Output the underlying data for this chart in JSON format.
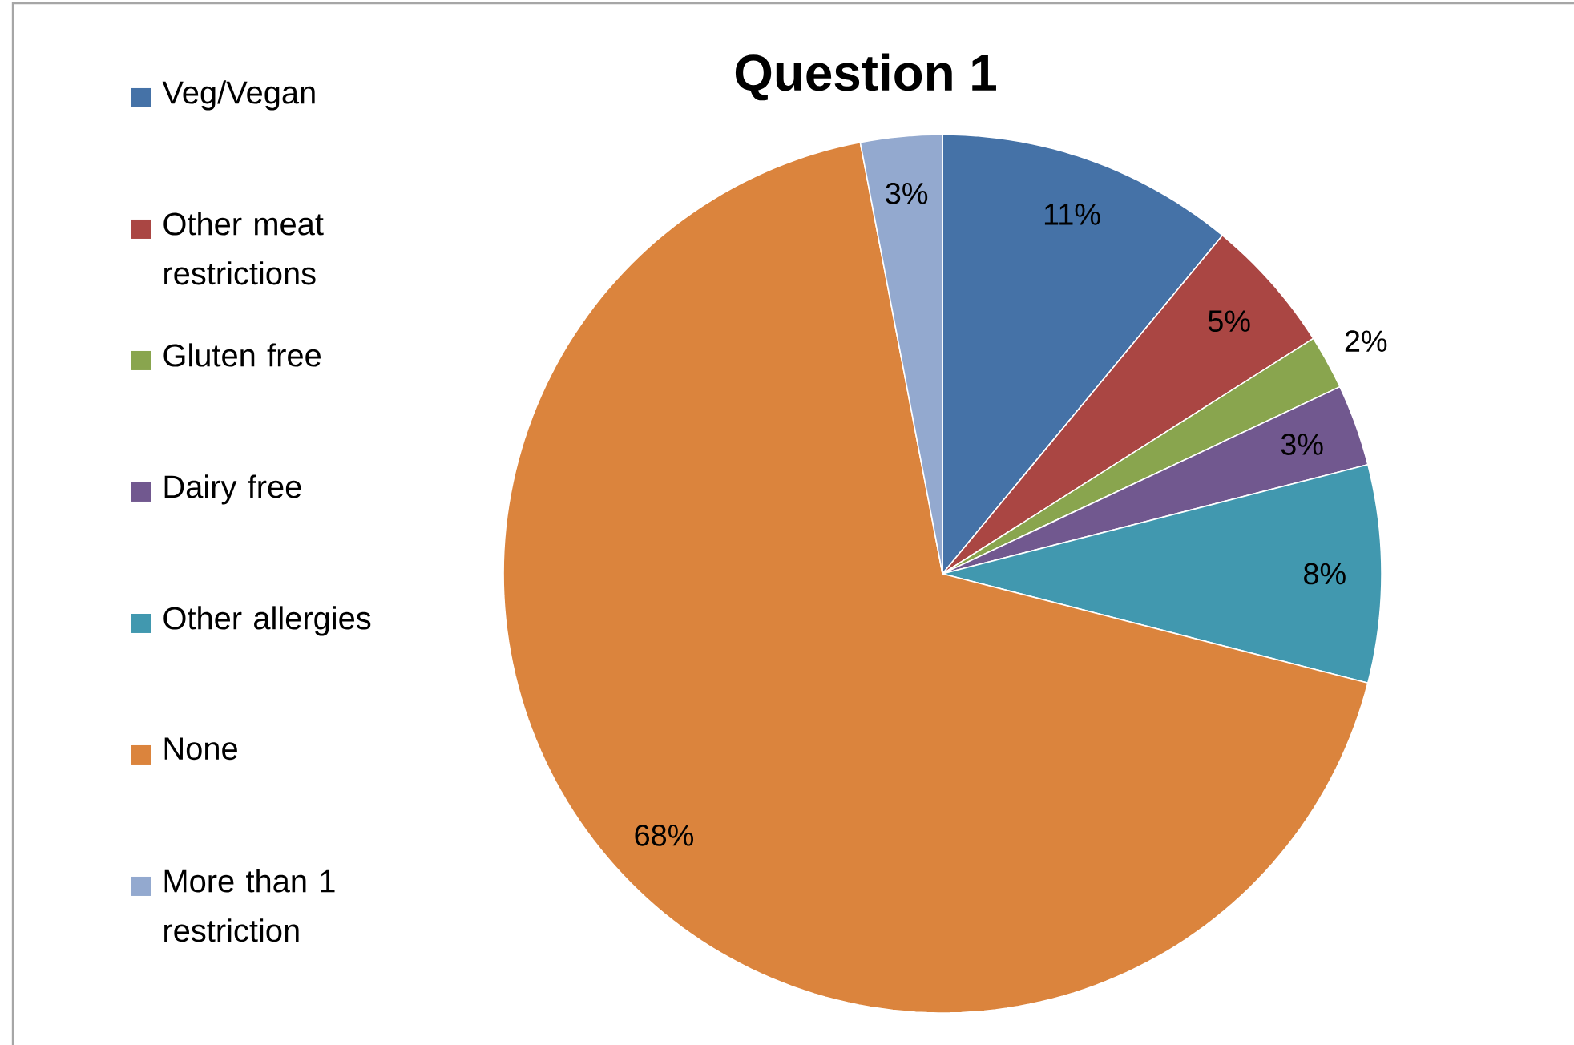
{
  "chart_data": {
    "type": "pie",
    "title": "Question 1",
    "categories": [
      "Veg/Vegan",
      "Other meat restrictions",
      "Gluten free",
      "Dairy free",
      "Other allergies",
      "None",
      "More than 1 restriction"
    ],
    "values": [
      11,
      5,
      2,
      3,
      8,
      68,
      3
    ],
    "value_labels": [
      "11%",
      "5%",
      "2%",
      "3%",
      "8%",
      "68%",
      "3%"
    ],
    "colors": [
      "#4572a7",
      "#aa4643",
      "#89a54e",
      "#71588f",
      "#4198af",
      "#db843d",
      "#93a9cf"
    ],
    "legend": "left"
  }
}
